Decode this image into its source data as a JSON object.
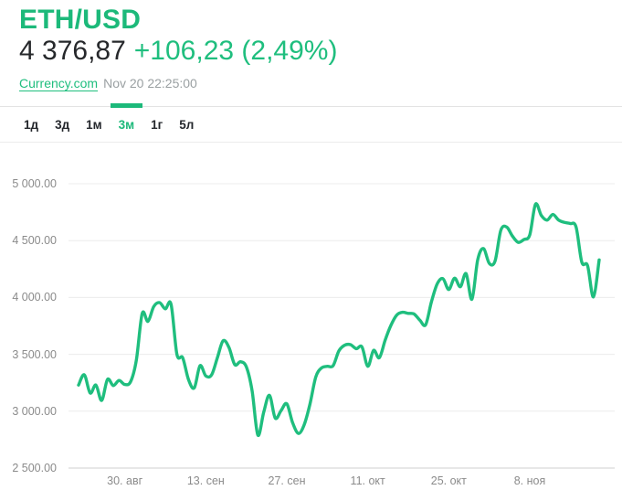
{
  "header": {
    "title": "ETH/USD",
    "price": "4 376,87",
    "change": "+106,23 (2,49%)",
    "source": "Currency.com",
    "timestamp": "Nov 20 22:25:00"
  },
  "tabs": {
    "items": [
      {
        "id": "1d",
        "label": "1д"
      },
      {
        "id": "3d",
        "label": "3д"
      },
      {
        "id": "1m",
        "label": "1м"
      },
      {
        "id": "3m",
        "label": "3м"
      },
      {
        "id": "1y",
        "label": "1г"
      },
      {
        "id": "5y",
        "label": "5л"
      }
    ],
    "active_index": 3
  },
  "colors": {
    "accent_green": "#1cb97a",
    "line_green": "#1fbe7e",
    "price_text": "#26282b",
    "muted_text": "#9aa0a2",
    "axis_text": "#8b8b8b",
    "gridline": "#ececec"
  },
  "chart_data": {
    "type": "line",
    "title": "ETH/USD — 3 month price chart",
    "series_name": "ETH/USD",
    "unit": "USD",
    "period": "3м",
    "grid": true,
    "legend": false,
    "ylim": [
      2500,
      5000
    ],
    "y_ticks": [
      {
        "label": "5 000.00",
        "value": 5000
      },
      {
        "label": "4 500.00",
        "value": 4500
      },
      {
        "label": "4 000.00",
        "value": 4000
      },
      {
        "label": "3 500.00",
        "value": 3500
      },
      {
        "label": "3 000.00",
        "value": 3000
      },
      {
        "label": "2 500.00",
        "value": 2500
      }
    ],
    "x_ticks": [
      {
        "label": "30. авг",
        "day_index": 8
      },
      {
        "label": "13. сен",
        "day_index": 22
      },
      {
        "label": "27. сен",
        "day_index": 36
      },
      {
        "label": "11. окт",
        "day_index": 50
      },
      {
        "label": "25. окт",
        "day_index": 64
      },
      {
        "label": "8. ноя",
        "day_index": 78
      }
    ],
    "x_start_date": "08-22",
    "x_end_date": "11-20",
    "dates": [
      "08-22",
      "08-23",
      "08-24",
      "08-25",
      "08-26",
      "08-27",
      "08-28",
      "08-29",
      "08-30",
      "08-31",
      "09-01",
      "09-02",
      "09-03",
      "09-04",
      "09-05",
      "09-06",
      "09-07",
      "09-08",
      "09-09",
      "09-10",
      "09-11",
      "09-12",
      "09-13",
      "09-14",
      "09-15",
      "09-16",
      "09-17",
      "09-18",
      "09-19",
      "09-20",
      "09-21",
      "09-22",
      "09-23",
      "09-24",
      "09-25",
      "09-26",
      "09-27",
      "09-28",
      "09-29",
      "09-30",
      "10-01",
      "10-02",
      "10-03",
      "10-04",
      "10-05",
      "10-06",
      "10-07",
      "10-08",
      "10-09",
      "10-10",
      "10-11",
      "10-12",
      "10-13",
      "10-14",
      "10-15",
      "10-16",
      "10-17",
      "10-18",
      "10-19",
      "10-20",
      "10-21",
      "10-22",
      "10-23",
      "10-24",
      "10-25",
      "10-26",
      "10-27",
      "10-28",
      "10-29",
      "10-30",
      "10-31",
      "11-01",
      "11-02",
      "11-03",
      "11-04",
      "11-05",
      "11-06",
      "11-07",
      "11-08",
      "11-09",
      "11-10",
      "11-11",
      "11-12",
      "11-13",
      "11-14",
      "11-15",
      "11-16",
      "11-17",
      "11-18",
      "11-19",
      "11-20"
    ],
    "values": [
      3230,
      3320,
      3160,
      3230,
      3095,
      3280,
      3225,
      3270,
      3235,
      3260,
      3450,
      3860,
      3790,
      3920,
      3955,
      3900,
      3940,
      3500,
      3470,
      3280,
      3205,
      3400,
      3310,
      3320,
      3470,
      3620,
      3560,
      3410,
      3435,
      3390,
      3180,
      2790,
      2990,
      3140,
      2940,
      3005,
      3065,
      2900,
      2805,
      2880,
      3060,
      3300,
      3380,
      3395,
      3400,
      3530,
      3580,
      3585,
      3550,
      3565,
      3395,
      3535,
      3470,
      3625,
      3755,
      3845,
      3870,
      3860,
      3855,
      3800,
      3760,
      3960,
      4120,
      4165,
      4070,
      4170,
      4095,
      4210,
      3985,
      4330,
      4430,
      4300,
      4320,
      4590,
      4620,
      4540,
      4485,
      4510,
      4550,
      4820,
      4720,
      4680,
      4730,
      4680,
      4660,
      4650,
      4620,
      4310,
      4280,
      4005,
      4330
    ]
  }
}
